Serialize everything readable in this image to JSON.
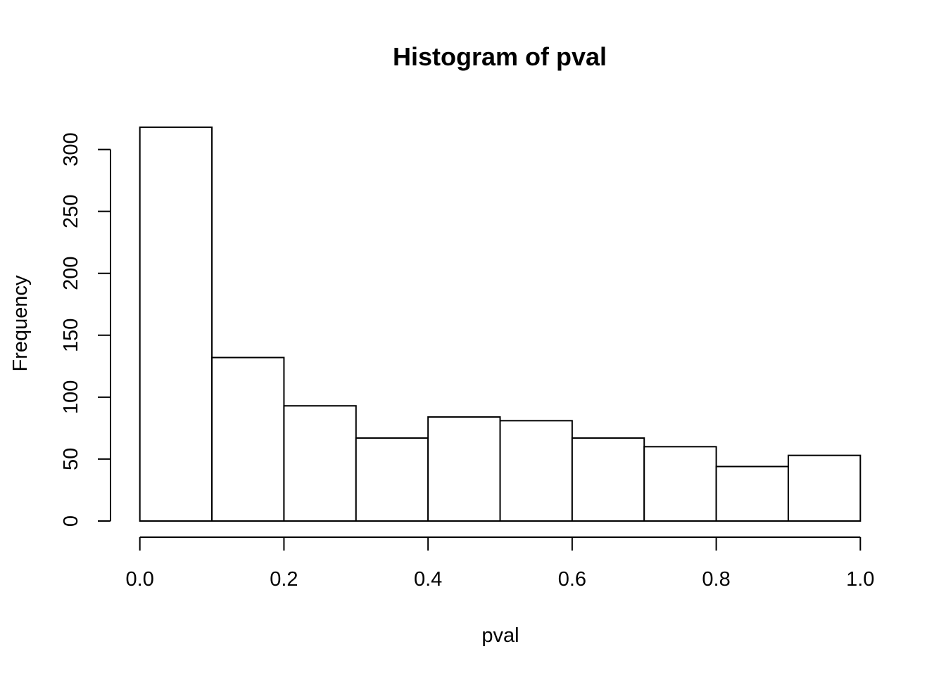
{
  "chart_data": {
    "type": "bar",
    "subtype": "histogram",
    "title": "Histogram of pval",
    "xlabel": "pval",
    "ylabel": "Frequency",
    "bin_edges": [
      0.0,
      0.1,
      0.2,
      0.3,
      0.4,
      0.5,
      0.6,
      0.7,
      0.8,
      0.9,
      1.0
    ],
    "counts": [
      318,
      132,
      93,
      67,
      84,
      81,
      67,
      60,
      44,
      53
    ],
    "xtick_values": [
      0.0,
      0.2,
      0.4,
      0.6,
      0.8,
      1.0
    ],
    "xtick_labels": [
      "0.0",
      "0.2",
      "0.4",
      "0.6",
      "0.8",
      "1.0"
    ],
    "ytick_values": [
      0,
      50,
      100,
      150,
      200,
      250,
      300
    ],
    "ytick_labels": [
      "0",
      "50",
      "100",
      "150",
      "200",
      "250",
      "300"
    ],
    "xlim": [
      0.0,
      1.0
    ],
    "ylim": [
      0,
      318
    ],
    "grid": false,
    "legend_position": "none",
    "colors": {
      "background": "#ffffff",
      "bar_fill": "#ffffff",
      "bar_stroke": "#000000",
      "axis": "#000000",
      "text": "#000000"
    }
  }
}
